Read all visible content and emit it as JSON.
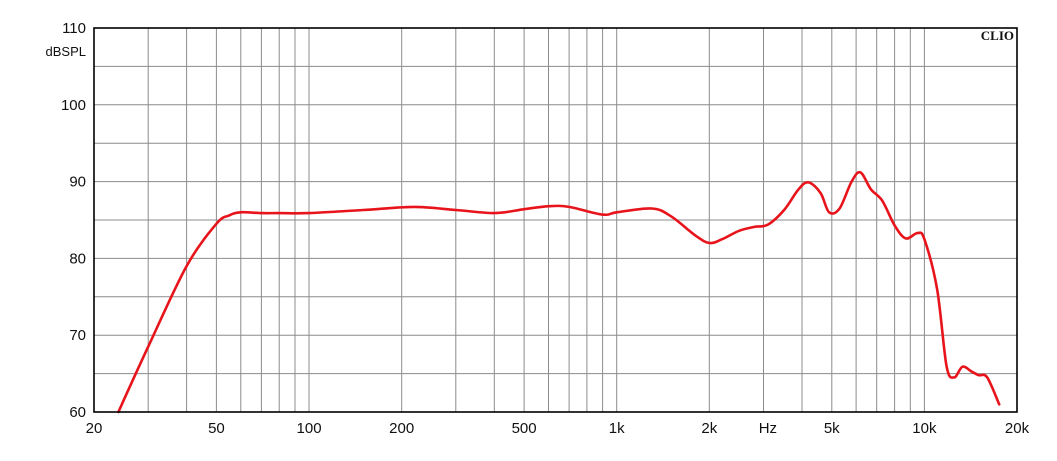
{
  "chart_data": {
    "type": "line",
    "brand": "CLIO",
    "ylabel": "dBSPL",
    "xlabel": "Hz",
    "x_scale": "log",
    "xlim": [
      20,
      20000
    ],
    "ylim": [
      60,
      110
    ],
    "grid": true,
    "y_ticks": [
      60,
      70,
      80,
      90,
      100,
      110
    ],
    "y_tick_labels": [
      "60",
      "70",
      "80",
      "90",
      "100",
      "110"
    ],
    "x_ticks": [
      20,
      50,
      100,
      200,
      500,
      1000,
      2000,
      5000,
      10000,
      20000
    ],
    "x_tick_labels": [
      "20",
      "50",
      "100",
      "200",
      "500",
      "1k",
      "2k",
      "5k",
      "10k",
      "20k"
    ],
    "series": [
      {
        "color": "#e8141b",
        "x": [
          24,
          30,
          40,
          50,
          55,
          60,
          70,
          80,
          100,
          150,
          220,
          300,
          400,
          500,
          600,
          700,
          900,
          1000,
          1300,
          1500,
          1800,
          2000,
          2200,
          2500,
          2800,
          3100,
          3500,
          3900,
          4200,
          4600,
          4900,
          5300,
          5800,
          6200,
          6700,
          7300,
          8000,
          8700,
          9500,
          10000,
          11000,
          11800,
          12500,
          13300,
          14200,
          15000,
          16000,
          17500
        ],
        "y": [
          60,
          68.5,
          79,
          84.5,
          85.6,
          86,
          85.9,
          85.9,
          85.9,
          86.3,
          86.7,
          86.3,
          85.9,
          86.4,
          86.8,
          86.7,
          85.7,
          86,
          86.5,
          85.5,
          83,
          82,
          82.5,
          83.6,
          84.1,
          84.4,
          86.3,
          89,
          89.9,
          88.5,
          86,
          86.5,
          90,
          91.2,
          89,
          87.5,
          84.3,
          82.6,
          83.3,
          82.5,
          76,
          66,
          64.5,
          65.9,
          65.3,
          64.8,
          64.5,
          61
        ]
      }
    ]
  }
}
